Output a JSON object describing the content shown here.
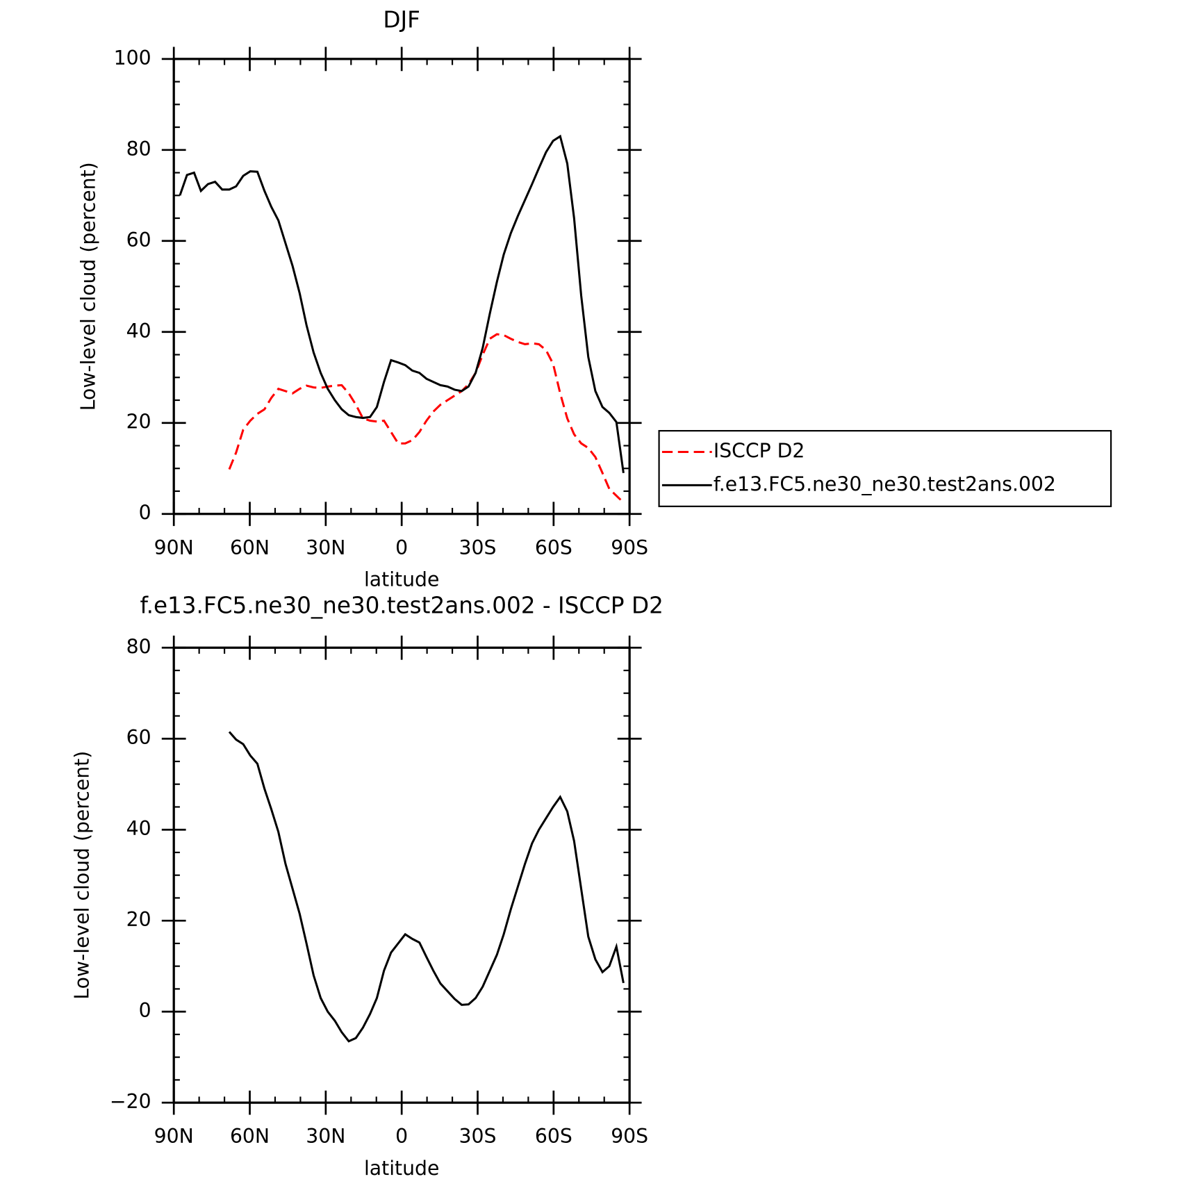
{
  "chart_data": [
    {
      "type": "line",
      "title": "DJF",
      "xlabel": "latitude",
      "ylabel": "Low-level cloud (percent)",
      "xlim": [
        90,
        -90
      ],
      "xticks": [
        {
          "value": 90,
          "label": "90N"
        },
        {
          "value": 60,
          "label": "60N"
        },
        {
          "value": 30,
          "label": "30N"
        },
        0,
        {
          "value": -30,
          "label": "30S"
        },
        {
          "value": -60,
          "label": "60S"
        },
        {
          "value": -90,
          "label": "90S"
        }
      ],
      "ylim": [
        0,
        100
      ],
      "yticks": [
        0,
        20,
        40,
        60,
        80,
        100
      ],
      "legend": "right",
      "x": [
        87.6,
        84.8,
        82.0,
        79.3,
        76.5,
        73.7,
        70.9,
        68.1,
        65.4,
        62.6,
        59.8,
        57.0,
        54.2,
        51.5,
        48.7,
        45.9,
        43.1,
        40.3,
        37.6,
        34.8,
        32.0,
        29.2,
        26.4,
        23.7,
        20.9,
        18.1,
        15.3,
        12.5,
        9.8,
        7.0,
        4.2,
        1.4,
        -1.4,
        -4.2,
        -7.0,
        -9.8,
        -12.5,
        -15.3,
        -18.1,
        -20.9,
        -23.7,
        -26.4,
        -29.2,
        -32.0,
        -34.8,
        -37.6,
        -40.3,
        -43.1,
        -45.9,
        -48.7,
        -51.5,
        -54.2,
        -57.0,
        -59.8,
        -62.6,
        -65.4,
        -68.1,
        -70.9,
        -73.7,
        -76.5,
        -79.3,
        -82.0,
        -84.8,
        -87.6
      ],
      "series": [
        {
          "name": "ISCCP D2",
          "color": "#ff0000",
          "line_style": "dashed",
          "values": [
            null,
            null,
            null,
            null,
            null,
            null,
            null,
            9.8,
            13.5,
            18.5,
            20.5,
            22,
            23,
            25.5,
            27.5,
            27,
            26.5,
            27.5,
            28.2,
            27.8,
            27.7,
            28,
            28.2,
            28.3,
            26.5,
            24,
            21,
            20.5,
            20.3,
            20.5,
            18,
            15.5,
            15.5,
            16.2,
            18,
            20.5,
            22.5,
            24,
            25,
            26,
            27,
            28.5,
            31,
            35,
            38.5,
            39.5,
            39.3,
            38.5,
            37.8,
            37.3,
            37.5,
            37.3,
            36,
            33,
            26.5,
            21,
            17.5,
            15.5,
            14.5,
            12.5,
            9,
            5.5,
            4,
            2.5
          ]
        },
        {
          "name": "f.e13.FC5.ne30_ne30.test2ans.002",
          "color": "#000000",
          "line_style": "solid",
          "values": [
            70,
            74.5,
            75,
            71,
            72.5,
            73,
            71.3,
            71.3,
            72,
            74.3,
            75.3,
            75.2,
            71,
            67.5,
            64.5,
            59.5,
            54.5,
            48.5,
            41.5,
            35.5,
            31,
            27.5,
            25,
            23,
            21.7,
            21.3,
            21.1,
            21.3,
            23.5,
            29,
            33.8,
            33.3,
            32.7,
            31.5,
            31,
            29.7,
            29,
            28.3,
            28,
            27.3,
            27,
            28,
            31,
            36.5,
            44,
            51,
            57,
            61.7,
            65.5,
            69,
            72.5,
            76,
            79.5,
            82,
            83,
            77,
            65,
            48,
            34.5,
            27,
            23.5,
            22.2,
            20.2,
            9
          ]
        }
      ]
    },
    {
      "type": "line",
      "title": "f.e13.FC5.ne30_ne30.test2ans.002 - ISCCP D2",
      "xlabel": "latitude",
      "ylabel": "Low-level cloud (percent)",
      "xlim": [
        90,
        -90
      ],
      "xticks": [
        {
          "value": 90,
          "label": "90N"
        },
        {
          "value": 60,
          "label": "60N"
        },
        {
          "value": 30,
          "label": "30N"
        },
        0,
        {
          "value": -30,
          "label": "30S"
        },
        {
          "value": -60,
          "label": "60S"
        },
        {
          "value": -90,
          "label": "90S"
        }
      ],
      "ylim": [
        -20,
        80
      ],
      "yticks": [
        {
          "value": -20,
          "label": "−20"
        },
        0,
        20,
        40,
        60,
        80
      ],
      "x": [
        68.1,
        65.4,
        62.6,
        59.8,
        57.0,
        54.2,
        51.5,
        48.7,
        45.9,
        43.1,
        40.3,
        37.6,
        34.8,
        32.0,
        29.2,
        26.4,
        23.7,
        20.9,
        18.1,
        15.3,
        12.5,
        9.8,
        7.0,
        4.2,
        1.4,
        -1.4,
        -4.2,
        -7.0,
        -9.8,
        -12.5,
        -15.3,
        -18.1,
        -20.9,
        -23.7,
        -26.4,
        -29.2,
        -32.0,
        -34.8,
        -37.6,
        -40.3,
        -43.1,
        -45.9,
        -48.7,
        -51.5,
        -54.2,
        -57.0,
        -59.8,
        -62.6,
        -65.4,
        -68.1,
        -70.9,
        -73.7,
        -76.5,
        -79.3,
        -82.0,
        -84.8,
        -87.6
      ],
      "series": [
        {
          "color": "#000000",
          "line_style": "solid",
          "values": [
            61.5,
            59.8,
            58.8,
            56.3,
            54.5,
            49,
            44.5,
            39.5,
            32.5,
            27,
            21.5,
            15,
            8,
            3,
            0,
            -2,
            -4.5,
            -6.5,
            -5.8,
            -3.5,
            -0.5,
            3,
            9,
            13,
            15,
            17,
            16,
            15.2,
            12,
            9,
            6.2,
            4.5,
            2.8,
            1.5,
            1.6,
            3,
            5.5,
            9,
            12.5,
            17,
            22.5,
            27.5,
            32.5,
            37,
            40,
            42.5,
            45,
            47.2,
            44,
            37.5,
            27,
            16.5,
            11.5,
            8.7,
            10,
            14.3,
            6.3
          ]
        }
      ]
    }
  ]
}
